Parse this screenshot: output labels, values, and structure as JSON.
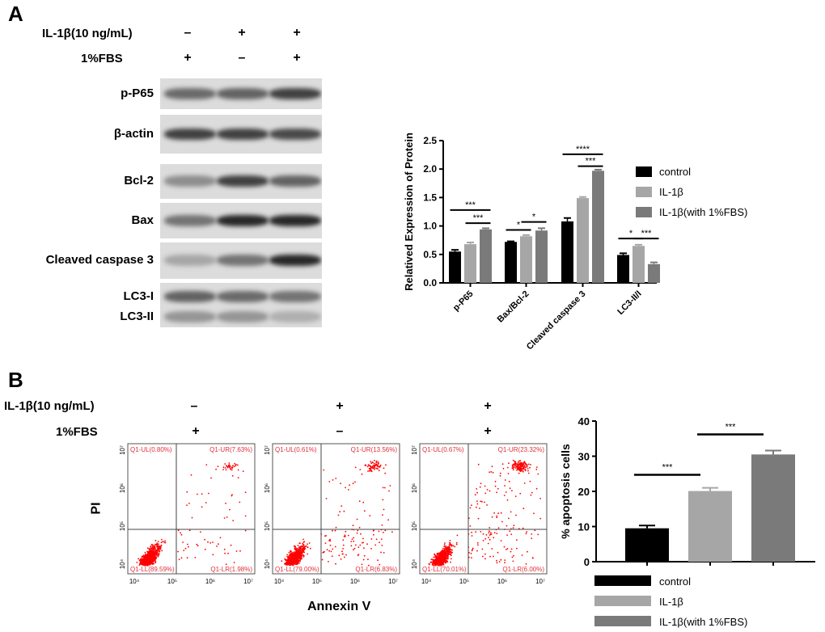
{
  "panelA": {
    "label": "A",
    "conditions": [
      {
        "name": "IL-1β(10 ng/mL)",
        "signs": [
          "–",
          "+",
          "+"
        ]
      },
      {
        "name": "1%FBS",
        "signs": [
          "+",
          "–",
          "+"
        ]
      }
    ],
    "blots": [
      {
        "name": "p-P65",
        "band_intensity": [
          0.55,
          0.6,
          0.8
        ]
      },
      {
        "name": "β-actin",
        "band_intensity": [
          0.8,
          0.8,
          0.75
        ]
      },
      {
        "name": "Bcl-2",
        "band_intensity": [
          0.35,
          0.8,
          0.6
        ]
      },
      {
        "name": "Bax",
        "band_intensity": [
          0.5,
          0.95,
          0.95
        ]
      },
      {
        "name": "Cleaved caspase 3",
        "band_intensity": [
          0.2,
          0.5,
          0.95
        ]
      },
      {
        "name": "LC3-I",
        "band_intensity": [
          0.6,
          0.55,
          0.5
        ]
      },
      {
        "name": "LC3-II",
        "band_intensity": [
          0.3,
          0.3,
          0.15
        ]
      }
    ]
  },
  "panelB": {
    "label": "B",
    "conditions": [
      {
        "name": "IL-1β(10 ng/mL)",
        "signs": [
          "–",
          "+",
          "+"
        ]
      },
      {
        "name": "1%FBS",
        "signs": [
          "+",
          "–",
          "+"
        ]
      }
    ],
    "flow": {
      "ylabel": "PI",
      "xlabel": "Annexin V",
      "ticks": [
        "10⁴",
        "10⁵",
        "10⁶",
        "10⁷"
      ],
      "plots": [
        {
          "UL": "Q1-UL(0.80%)",
          "UR": "Q1-UR(7.63%)",
          "LL": "Q1-LL(89.59%)",
          "LR": "Q1-LR(1.98%)"
        },
        {
          "UL": "Q1-UL(0.61%)",
          "UR": "Q1-UR(13.56%)",
          "LL": "Q1-LL(79.00%)",
          "LR": "Q1-LR(6.83%)"
        },
        {
          "UL": "Q1-UL(0.67%)",
          "UR": "Q1-UR(23.32%)",
          "LL": "Q1-LL(70.01%)",
          "LR": "Q1-LR(6.00%)"
        }
      ]
    }
  },
  "chart_data": [
    {
      "type": "bar",
      "ylabel": "Relatived Expression of Protein",
      "ylim": [
        0,
        2.5
      ],
      "yticks": [
        "0.0",
        "0.5",
        "1.0",
        "1.5",
        "2.0",
        "2.5"
      ],
      "categories": [
        "p-P65",
        "Bax/Bcl-2",
        "Cleaved caspase 3",
        "LC3-II/I"
      ],
      "series": [
        {
          "name": "control",
          "color": "#000000",
          "values": [
            0.55,
            0.72,
            1.08,
            0.49
          ],
          "errors": [
            0.03,
            0.01,
            0.06,
            0.03
          ]
        },
        {
          "name": "IL-1β",
          "color": "#a6a6a6",
          "values": [
            0.68,
            0.82,
            1.49,
            0.65
          ],
          "errors": [
            0.03,
            0.02,
            0.02,
            0.02
          ]
        },
        {
          "name": "IL-1β(with 1%FBS)",
          "color": "#7a7a7a",
          "values": [
            0.94,
            0.92,
            1.97,
            0.33
          ],
          "errors": [
            0.02,
            0.04,
            0.02,
            0.03
          ]
        }
      ],
      "significance": [
        {
          "group": 0,
          "pair": [
            0,
            2
          ],
          "label": "***",
          "y": 1.28
        },
        {
          "group": 0,
          "pair": [
            1,
            2
          ],
          "label": "***",
          "y": 1.05
        },
        {
          "group": 1,
          "pair": [
            0,
            1
          ],
          "label": "*",
          "y": 0.93
        },
        {
          "group": 1,
          "pair": [
            1,
            2
          ],
          "label": "*",
          "y": 1.07
        },
        {
          "group": 2,
          "pair": [
            0,
            2
          ],
          "label": "****",
          "y": 2.26
        },
        {
          "group": 2,
          "pair": [
            1,
            2
          ],
          "label": "***",
          "y": 2.05
        },
        {
          "group": 3,
          "pair": [
            0,
            1
          ],
          "label": "*",
          "y": 0.78
        },
        {
          "group": 3,
          "pair": [
            1,
            2
          ],
          "label": "***",
          "y": 0.78
        }
      ],
      "legend": "right"
    },
    {
      "type": "bar",
      "ylabel": "% apoptosis cells",
      "ylim": [
        0,
        40
      ],
      "yticks": [
        "0",
        "10",
        "20",
        "30",
        "40"
      ],
      "categories": [
        "control",
        "IL-1β",
        "IL-1β(with 1%FBS)"
      ],
      "values": [
        9.5,
        20.1,
        30.5
      ],
      "errors": [
        0.8,
        0.9,
        1.1
      ],
      "colors": [
        "#000000",
        "#a6a6a6",
        "#7a7a7a"
      ],
      "significance": [
        {
          "pair": [
            0,
            1
          ],
          "label": "***",
          "y": 24.7
        },
        {
          "pair": [
            1,
            2
          ],
          "label": "***",
          "y": 36.2
        }
      ],
      "legend": "bottom"
    }
  ]
}
